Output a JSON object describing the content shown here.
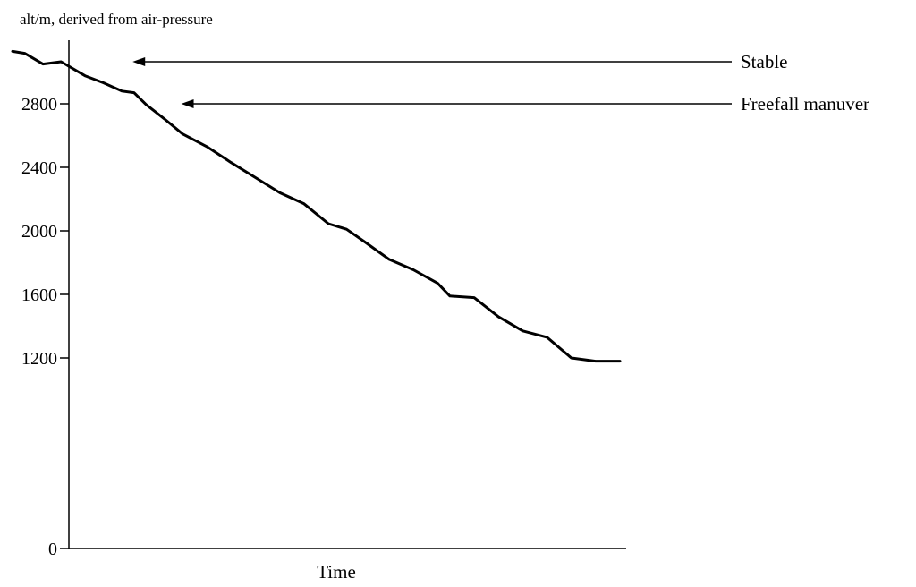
{
  "chart_data": {
    "type": "line",
    "title": "alt/m, derived from air-pressure",
    "xlabel": "Time",
    "ylabel": "alt/m, derived from air-pressure",
    "y_ticks": [
      0,
      1200,
      1600,
      2000,
      2400,
      2800
    ],
    "ylim": [
      0,
      3300
    ],
    "grid": false,
    "legend": "none",
    "series": [
      {
        "x": [
          0,
          2,
          5,
          8,
          12,
          15,
          18,
          20,
          22,
          25,
          28,
          32,
          36,
          40,
          44,
          48,
          52,
          55,
          58,
          62,
          66,
          70,
          72,
          76,
          80,
          84,
          88,
          92,
          96,
          100
        ],
        "y": [
          3130,
          3118,
          3050,
          3065,
          2975,
          2932,
          2880,
          2870,
          2795,
          2705,
          2610,
          2530,
          2430,
          2335,
          2240,
          2170,
          2045,
          2010,
          1930,
          1820,
          1755,
          1670,
          1590,
          1580,
          1460,
          1370,
          1330,
          1200,
          1180,
          1180
        ]
      }
    ],
    "annotations": [
      {
        "text": "Stable",
        "x": 18,
        "y": 3065
      },
      {
        "text": "Freefall manuver",
        "x": 26,
        "y": 2800
      }
    ]
  }
}
